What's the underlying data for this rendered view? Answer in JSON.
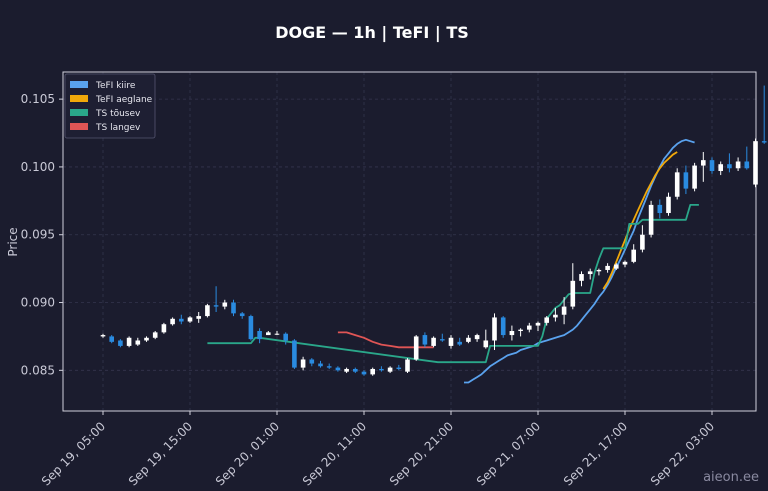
{
  "chart_data": {
    "type": "candlestick",
    "title": "DOGE — 1h  |  TeFI  |  TS",
    "ylabel": "Price",
    "ylim": [
      0.082,
      0.107
    ],
    "y_ticks": [
      0.085,
      0.09,
      0.095,
      0.1,
      0.105
    ],
    "y_tick_labels": [
      "0.085",
      "0.090",
      "0.095",
      "0.100",
      "0.105"
    ],
    "x_tick_labels": [
      "Sep 19, 05:00",
      "Sep 19, 15:00",
      "Sep 20, 01:00",
      "Sep 20, 11:00",
      "Sep 20, 21:00",
      "Sep 21, 07:00",
      "Sep 21, 17:00",
      "Sep 22, 03:00"
    ],
    "x_tick_index": [
      0,
      10,
      20,
      30,
      40,
      50,
      60,
      70
    ],
    "legend_position": "top-left",
    "grid": true,
    "up_color": "#ffffff",
    "down_color": "#2a8be0",
    "candles": [
      [
        0.0875,
        0.0877,
        0.0874,
        0.0876
      ],
      [
        0.0875,
        0.0876,
        0.087,
        0.0871
      ],
      [
        0.0872,
        0.0873,
        0.0867,
        0.0868
      ],
      [
        0.0868,
        0.0875,
        0.0867,
        0.0874
      ],
      [
        0.0869,
        0.0874,
        0.0868,
        0.0872
      ],
      [
        0.0872,
        0.0875,
        0.0871,
        0.0874
      ],
      [
        0.0874,
        0.0879,
        0.0873,
        0.0878
      ],
      [
        0.0878,
        0.0885,
        0.0877,
        0.0884
      ],
      [
        0.0884,
        0.0889,
        0.0883,
        0.0888
      ],
      [
        0.0888,
        0.0891,
        0.0884,
        0.0886
      ],
      [
        0.0886,
        0.089,
        0.0885,
        0.0889
      ],
      [
        0.0888,
        0.0893,
        0.0885,
        0.089
      ],
      [
        0.089,
        0.0899,
        0.0889,
        0.0898
      ],
      [
        0.0898,
        0.0912,
        0.0893,
        0.0897
      ],
      [
        0.0897,
        0.0902,
        0.0895,
        0.09
      ],
      [
        0.09,
        0.0902,
        0.089,
        0.0892
      ],
      [
        0.0892,
        0.0893,
        0.0888,
        0.089
      ],
      [
        0.089,
        0.0891,
        0.0872,
        0.0873
      ],
      [
        0.0879,
        0.0881,
        0.087,
        0.0873
      ],
      [
        0.0876,
        0.0879,
        0.0876,
        0.0878
      ],
      [
        0.0877,
        0.0879,
        0.0876,
        0.0877
      ],
      [
        0.0877,
        0.0878,
        0.0869,
        0.0872
      ],
      [
        0.0872,
        0.0873,
        0.0851,
        0.0852
      ],
      [
        0.0852,
        0.086,
        0.085,
        0.0858
      ],
      [
        0.0858,
        0.0859,
        0.0853,
        0.0855
      ],
      [
        0.0855,
        0.0857,
        0.0852,
        0.0853
      ],
      [
        0.0853,
        0.0855,
        0.0851,
        0.0852
      ],
      [
        0.0852,
        0.0853,
        0.0849,
        0.085
      ],
      [
        0.0849,
        0.0852,
        0.0848,
        0.0851
      ],
      [
        0.0851,
        0.0852,
        0.0848,
        0.0849
      ],
      [
        0.0849,
        0.085,
        0.0846,
        0.0847
      ],
      [
        0.0847,
        0.0852,
        0.0846,
        0.0851
      ],
      [
        0.0851,
        0.0853,
        0.0849,
        0.085
      ],
      [
        0.0849,
        0.0853,
        0.0848,
        0.0852
      ],
      [
        0.0852,
        0.0854,
        0.085,
        0.0851
      ],
      [
        0.0849,
        0.0859,
        0.0848,
        0.0858
      ],
      [
        0.0858,
        0.0876,
        0.0857,
        0.0875
      ],
      [
        0.0876,
        0.0878,
        0.0867,
        0.0869
      ],
      [
        0.0868,
        0.0875,
        0.0867,
        0.0874
      ],
      [
        0.0873,
        0.0877,
        0.0871,
        0.0872
      ],
      [
        0.0868,
        0.0876,
        0.0866,
        0.0874
      ],
      [
        0.0871,
        0.0874,
        0.0868,
        0.0869
      ],
      [
        0.0871,
        0.0876,
        0.087,
        0.0874
      ],
      [
        0.0873,
        0.0877,
        0.0871,
        0.0876
      ],
      [
        0.0867,
        0.088,
        0.0866,
        0.0872
      ],
      [
        0.0872,
        0.0892,
        0.0865,
        0.0889
      ],
      [
        0.0889,
        0.089,
        0.0874,
        0.0876
      ],
      [
        0.0876,
        0.0883,
        0.0872,
        0.0879
      ],
      [
        0.0879,
        0.0881,
        0.0875,
        0.088
      ],
      [
        0.088,
        0.0885,
        0.0878,
        0.0883
      ],
      [
        0.0883,
        0.0886,
        0.0879,
        0.0885
      ],
      [
        0.0885,
        0.089,
        0.0883,
        0.0889
      ],
      [
        0.0889,
        0.0896,
        0.0886,
        0.0891
      ],
      [
        0.0891,
        0.0904,
        0.0884,
        0.0897
      ],
      [
        0.0897,
        0.0929,
        0.0895,
        0.0916
      ],
      [
        0.0916,
        0.0923,
        0.0912,
        0.0921
      ],
      [
        0.0921,
        0.0925,
        0.0917,
        0.0923
      ],
      [
        0.0923,
        0.0925,
        0.092,
        0.0924
      ],
      [
        0.0924,
        0.0929,
        0.0922,
        0.0927
      ],
      [
        0.0925,
        0.0929,
        0.0924,
        0.0928
      ],
      [
        0.0928,
        0.0931,
        0.0926,
        0.093
      ],
      [
        0.093,
        0.0943,
        0.0929,
        0.0939
      ],
      [
        0.0939,
        0.0957,
        0.0937,
        0.095
      ],
      [
        0.095,
        0.0975,
        0.0948,
        0.0972
      ],
      [
        0.0972,
        0.0976,
        0.0962,
        0.0966
      ],
      [
        0.0966,
        0.0981,
        0.0964,
        0.0978
      ],
      [
        0.0978,
        0.0999,
        0.0976,
        0.0996
      ],
      [
        0.0996,
        0.1001,
        0.098,
        0.0984
      ],
      [
        0.0984,
        0.1003,
        0.0982,
        0.1001
      ],
      [
        0.1001,
        0.1011,
        0.0989,
        0.1005
      ],
      [
        0.1005,
        0.1007,
        0.0995,
        0.0997
      ],
      [
        0.0997,
        0.1004,
        0.0994,
        0.1002
      ],
      [
        0.1002,
        0.101,
        0.0996,
        0.0999
      ],
      [
        0.0999,
        0.1007,
        0.0997,
        0.1004
      ],
      [
        0.1004,
        0.1015,
        0.0998,
        0.0999
      ],
      [
        0.0987,
        0.1021,
        0.0985,
        0.1019
      ],
      [
        0.1019,
        0.106,
        0.1017,
        0.1018
      ],
      [
        0.1019,
        0.1021,
        0.1014,
        0.1015
      ]
    ],
    "series": [
      {
        "name": "TeFI kiire",
        "color": "#5aa2ee",
        "points": [
          [
            83,
            0.0841
          ],
          [
            84,
            0.0841
          ],
          [
            85,
            0.0843
          ],
          [
            86,
            0.0845
          ],
          [
            87,
            0.0847
          ],
          [
            88,
            0.085
          ],
          [
            89,
            0.0853
          ],
          [
            90,
            0.0855
          ],
          [
            91,
            0.0857
          ],
          [
            92,
            0.0859
          ],
          [
            93,
            0.0861
          ],
          [
            94,
            0.0862
          ],
          [
            95,
            0.0863
          ],
          [
            96,
            0.0865
          ],
          [
            97,
            0.0866
          ],
          [
            98,
            0.0867
          ],
          [
            99,
            0.0868
          ],
          [
            100,
            0.087
          ],
          [
            101,
            0.0871
          ],
          [
            102,
            0.0872
          ],
          [
            103,
            0.0873
          ],
          [
            104,
            0.0874
          ],
          [
            105,
            0.0875
          ],
          [
            106,
            0.0876
          ],
          [
            107,
            0.0878
          ],
          [
            108,
            0.088
          ],
          [
            109,
            0.0883
          ],
          [
            110,
            0.0887
          ],
          [
            111,
            0.0891
          ],
          [
            112,
            0.0895
          ],
          [
            113,
            0.0899
          ],
          [
            114,
            0.0904
          ],
          [
            115,
            0.0908
          ],
          [
            116,
            0.0913
          ],
          [
            117,
            0.0919
          ],
          [
            118,
            0.0926
          ],
          [
            119,
            0.0932
          ],
          [
            120,
            0.0939
          ],
          [
            121,
            0.0946
          ],
          [
            122,
            0.0953
          ],
          [
            123,
            0.0962
          ],
          [
            124,
            0.097
          ],
          [
            125,
            0.0978
          ],
          [
            126,
            0.0986
          ],
          [
            127,
            0.0993
          ],
          [
            128,
            0.1
          ],
          [
            129,
            0.1006
          ],
          [
            130,
            0.101
          ],
          [
            131,
            0.1014
          ],
          [
            132,
            0.1017
          ],
          [
            133,
            0.1019
          ],
          [
            134,
            0.102
          ],
          [
            135,
            0.1019
          ],
          [
            136,
            0.1018
          ]
        ]
      },
      {
        "name": "TeFI aeglane",
        "color": "#f0a80a",
        "points": [
          [
            115,
            0.091
          ],
          [
            116,
            0.0915
          ],
          [
            117,
            0.0922
          ],
          [
            118,
            0.093
          ],
          [
            119,
            0.0938
          ],
          [
            120,
            0.0946
          ],
          [
            121,
            0.0954
          ],
          [
            122,
            0.0961
          ],
          [
            123,
            0.0968
          ],
          [
            124,
            0.0975
          ],
          [
            125,
            0.0982
          ],
          [
            126,
            0.0988
          ],
          [
            127,
            0.0994
          ],
          [
            128,
            0.0999
          ],
          [
            129,
            0.1003
          ],
          [
            130,
            0.1006
          ],
          [
            131,
            0.1009
          ],
          [
            132,
            0.1011
          ]
        ]
      },
      {
        "name": "TS tõusev",
        "color": "#2aa78a",
        "points": [
          [
            24,
            0.087
          ],
          [
            34,
            0.087
          ],
          [
            35,
            0.0874
          ],
          [
            36,
            0.0874
          ],
          [
            77,
            0.0856
          ],
          [
            88,
            0.0856
          ],
          [
            89,
            0.0868
          ],
          [
            100,
            0.0868
          ],
          [
            101,
            0.0875
          ],
          [
            102,
            0.0888
          ],
          [
            103,
            0.0892
          ],
          [
            104,
            0.0896
          ],
          [
            105,
            0.0898
          ],
          [
            106,
            0.0902
          ],
          [
            107,
            0.0906
          ],
          [
            108,
            0.0907
          ],
          [
            112,
            0.0907
          ],
          [
            113,
            0.0922
          ],
          [
            114,
            0.0932
          ],
          [
            115,
            0.094
          ],
          [
            120,
            0.094
          ],
          [
            121,
            0.0958
          ],
          [
            123,
            0.0958
          ],
          [
            124,
            0.0961
          ],
          [
            134,
            0.0961
          ],
          [
            135,
            0.0972
          ],
          [
            137,
            0.0972
          ]
        ]
      },
      {
        "name": "TS langev",
        "color": "#e05555",
        "points": [
          [
            54,
            0.0878
          ],
          [
            56,
            0.0878
          ],
          [
            58,
            0.0876
          ],
          [
            60,
            0.0874
          ],
          [
            62,
            0.0871
          ],
          [
            64,
            0.0869
          ],
          [
            66,
            0.0868
          ],
          [
            68,
            0.0867
          ],
          [
            70,
            0.0867
          ],
          [
            76,
            0.0867
          ]
        ]
      }
    ]
  },
  "watermark": "aieon.ee"
}
